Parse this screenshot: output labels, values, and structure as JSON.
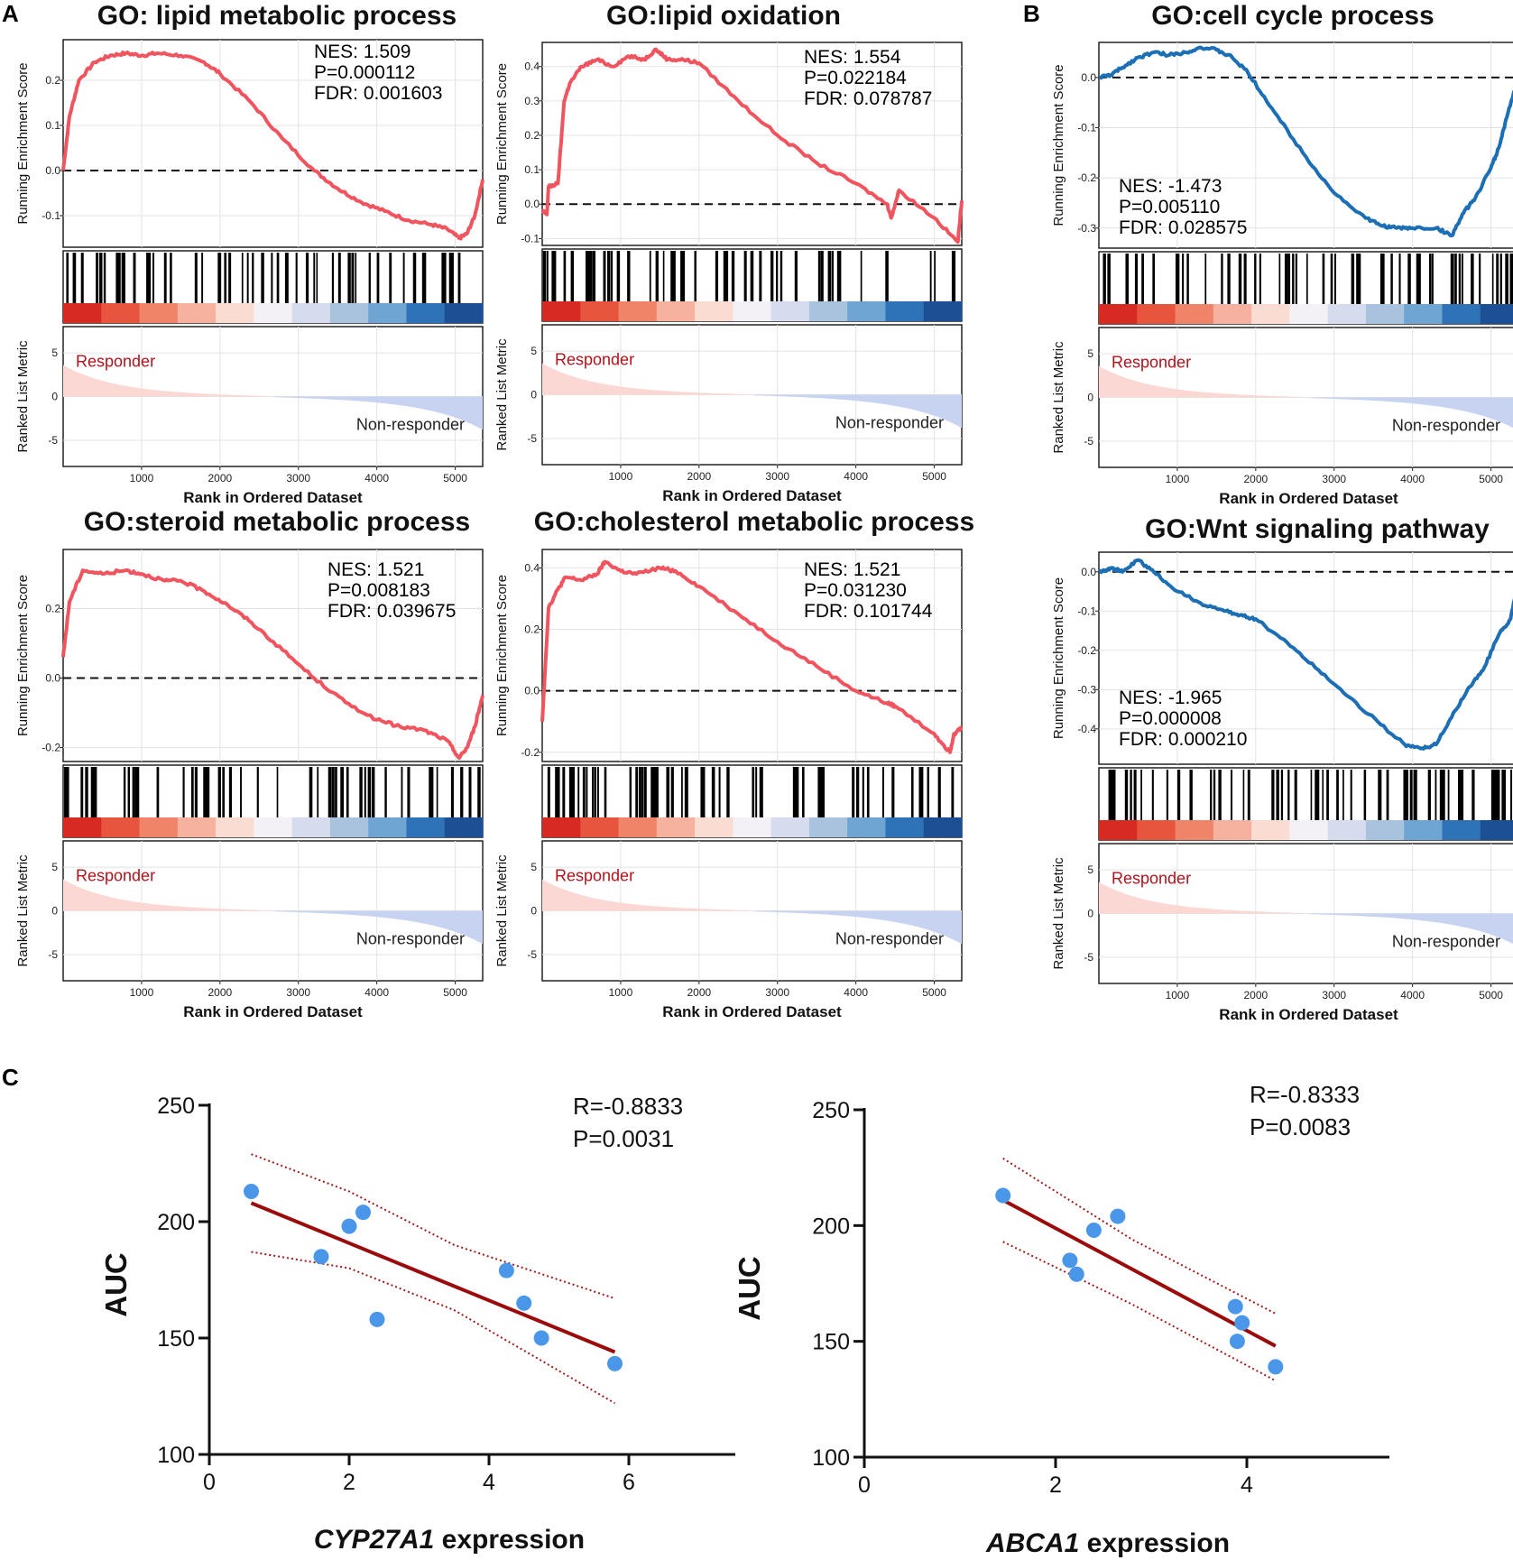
{
  "panel_labels": [
    "A",
    "B",
    "C"
  ],
  "gsea_common": {
    "running_ylabel": "Running Enrichment Score",
    "metric_ylabel": "Ranked List Metric",
    "xlabel": "Rank in Ordered Dataset",
    "rank_ticks": [
      "1000",
      "2000",
      "3000",
      "4000",
      "5000"
    ],
    "metric_ticks": [
      "5",
      "0",
      "-5"
    ],
    "responder_label": "Responder",
    "nonresponder_label": "Non-responder",
    "colors": {
      "positive_curve": "#f0555f",
      "negative_curve": "#1c6fb5",
      "responder_text": "#b3121c"
    }
  },
  "chart_data": [
    {
      "type": "line",
      "panel": "A",
      "title": "GO: lipid metabolic process",
      "nes": "NES: 1.509",
      "p": "P=0.000112",
      "fdr": "FDR: 0.001603",
      "direction": "positive",
      "y_ticks": [
        "0.2",
        "0.1",
        "0.0",
        "-0.1"
      ],
      "y_tick_values": [
        0.2,
        0.1,
        0.0,
        -0.1
      ],
      "ylim": [
        -0.17,
        0.29
      ],
      "x": [
        0,
        80,
        200,
        400,
        600,
        800,
        1000,
        1200,
        1500,
        1800,
        2000,
        2400,
        2800,
        3200,
        3500,
        3800,
        4100,
        4400,
        4700,
        4900,
        5050,
        5150,
        5250,
        5350
      ],
      "y": [
        0.0,
        0.12,
        0.2,
        0.24,
        0.255,
        0.26,
        0.255,
        0.26,
        0.255,
        0.24,
        0.215,
        0.15,
        0.07,
        0.0,
        -0.04,
        -0.07,
        -0.09,
        -0.11,
        -0.12,
        -0.13,
        -0.15,
        -0.14,
        -0.1,
        -0.02
      ]
    },
    {
      "type": "line",
      "panel": "A",
      "title": "GO:lipid oxidation",
      "nes": "NES: 1.554",
      "p": "P=0.022184",
      "fdr": "FDR: 0.078787",
      "direction": "positive",
      "y_ticks": [
        "0.4",
        "0.3",
        "0.2",
        "0.1",
        "0.0",
        "-0.1"
      ],
      "y_tick_values": [
        0.4,
        0.3,
        0.2,
        0.1,
        0.0,
        -0.1
      ],
      "ylim": [
        -0.12,
        0.47
      ],
      "x": [
        0,
        60,
        80,
        200,
        280,
        350,
        500,
        700,
        900,
        1100,
        1300,
        1450,
        1600,
        1800,
        2000,
        2500,
        3000,
        3500,
        4000,
        4400,
        4450,
        4550,
        5000,
        5300,
        5350
      ],
      "y": [
        -0.02,
        -0.03,
        0.05,
        0.06,
        0.3,
        0.35,
        0.4,
        0.42,
        0.4,
        0.43,
        0.42,
        0.45,
        0.42,
        0.42,
        0.41,
        0.3,
        0.2,
        0.12,
        0.06,
        0.0,
        -0.04,
        0.04,
        -0.04,
        -0.11,
        0.01
      ]
    },
    {
      "type": "line",
      "panel": "A",
      "title": "GO:steroid metabolic process",
      "nes": "NES: 1.521",
      "p": "P=0.008183",
      "fdr": "FDR: 0.039675",
      "direction": "positive",
      "y_ticks": [
        "0.2",
        "0.0",
        "-0.2"
      ],
      "y_tick_values": [
        0.2,
        0.0,
        -0.2
      ],
      "ylim": [
        -0.24,
        0.37
      ],
      "x": [
        0,
        80,
        250,
        500,
        800,
        1000,
        1300,
        1500,
        1800,
        2100,
        2400,
        2800,
        3200,
        3600,
        4000,
        4300,
        4600,
        4900,
        5050,
        5150,
        5250,
        5350
      ],
      "y": [
        0.06,
        0.22,
        0.31,
        0.3,
        0.31,
        0.3,
        0.28,
        0.28,
        0.25,
        0.21,
        0.16,
        0.08,
        0.0,
        -0.07,
        -0.12,
        -0.14,
        -0.15,
        -0.18,
        -0.23,
        -0.2,
        -0.14,
        -0.05
      ]
    },
    {
      "type": "line",
      "panel": "A",
      "title": "GO:cholesterol metabolic process",
      "nes": "NES: 1.521",
      "p": "P=0.031230",
      "fdr": "FDR: 0.101744",
      "direction": "positive",
      "y_ticks": [
        "0.4",
        "0.2",
        "0.0",
        "-0.2"
      ],
      "y_tick_values": [
        0.4,
        0.2,
        0.0,
        -0.2
      ],
      "ylim": [
        -0.23,
        0.46
      ],
      "x": [
        0,
        80,
        200,
        300,
        500,
        700,
        800,
        1000,
        1200,
        1500,
        1700,
        2000,
        2500,
        3000,
        3500,
        4000,
        4400,
        4500,
        5000,
        5200,
        5250,
        5350
      ],
      "y": [
        -0.1,
        0.27,
        0.33,
        0.37,
        0.36,
        0.38,
        0.42,
        0.39,
        0.38,
        0.4,
        0.39,
        0.34,
        0.25,
        0.16,
        0.08,
        0.0,
        -0.04,
        -0.05,
        -0.14,
        -0.2,
        -0.14,
        -0.12
      ]
    },
    {
      "type": "line",
      "panel": "B",
      "title": "GO:cell cycle process",
      "nes": "NES: -1.473",
      "p": "P=0.005110",
      "fdr": "FDR: 0.028575",
      "direction": "negative",
      "y_ticks": [
        "0.0",
        "-0.1",
        "-0.2",
        "-0.3"
      ],
      "y_tick_values": [
        0.0,
        -0.1,
        -0.2,
        -0.3
      ],
      "ylim": [
        -0.34,
        0.07
      ],
      "x": [
        0,
        150,
        300,
        500,
        700,
        900,
        1100,
        1300,
        1500,
        1700,
        1900,
        2200,
        2600,
        3000,
        3400,
        3600,
        3800,
        4000,
        4300,
        4500,
        4650,
        4800,
        5000,
        5100,
        5200,
        5350
      ],
      "y": [
        0.0,
        0.005,
        0.02,
        0.04,
        0.05,
        0.045,
        0.05,
        0.06,
        0.055,
        0.04,
        0.01,
        -0.06,
        -0.15,
        -0.23,
        -0.28,
        -0.295,
        -0.3,
        -0.3,
        -0.3,
        -0.315,
        -0.27,
        -0.24,
        -0.18,
        -0.14,
        -0.08,
        -0.0
      ]
    },
    {
      "type": "line",
      "panel": "B",
      "title": "GO:Wnt signaling pathway",
      "nes": "NES: -1.965",
      "p": "P=0.000008",
      "fdr": "FDR: 0.000210",
      "direction": "negative",
      "y_ticks": [
        "0.0",
        "-0.1",
        "-0.2",
        "-0.3",
        "-0.4"
      ],
      "y_tick_values": [
        0.0,
        -0.1,
        -0.2,
        -0.3,
        -0.4
      ],
      "ylim": [
        -0.49,
        0.05
      ],
      "x": [
        0,
        150,
        300,
        500,
        700,
        1000,
        1300,
        1600,
        1800,
        2000,
        2400,
        2800,
        3200,
        3600,
        3900,
        4100,
        4300,
        4500,
        4700,
        4900,
        5100,
        5250,
        5350
      ],
      "y": [
        0.0,
        0.01,
        0.0,
        0.03,
        0.0,
        -0.05,
        -0.08,
        -0.1,
        -0.11,
        -0.12,
        -0.18,
        -0.25,
        -0.32,
        -0.39,
        -0.44,
        -0.45,
        -0.44,
        -0.37,
        -0.3,
        -0.25,
        -0.16,
        -0.12,
        -0.02
      ]
    },
    {
      "type": "scatter",
      "panel": "C",
      "xlabel_italic": "CYP27A1",
      "xlabel_rest": " expression",
      "ylabel": "AUC",
      "r": "R=-0.8833",
      "p": "P=0.0031",
      "x_ticks": [
        "0",
        "2",
        "4",
        "6"
      ],
      "y_ticks": [
        "100",
        "150",
        "200",
        "250"
      ],
      "xlim": [
        0,
        7.5
      ],
      "ylim": [
        100,
        250
      ],
      "points": [
        [
          0.6,
          213
        ],
        [
          1.6,
          185
        ],
        [
          2.0,
          198
        ],
        [
          2.2,
          204
        ],
        [
          2.4,
          158
        ],
        [
          4.25,
          179
        ],
        [
          4.5,
          165
        ],
        [
          4.75,
          150
        ],
        [
          5.8,
          139
        ]
      ],
      "fit": [
        [
          0.6,
          208
        ],
        [
          5.8,
          144
        ]
      ],
      "ci_upper": [
        [
          0.6,
          229
        ],
        [
          2.0,
          213
        ],
        [
          3.5,
          190
        ],
        [
          5.8,
          167
        ]
      ],
      "ci_lower": [
        [
          0.6,
          187
        ],
        [
          2.0,
          180
        ],
        [
          3.5,
          162
        ],
        [
          5.8,
          122
        ]
      ],
      "colors": {
        "points": "#4a97ea",
        "fit": "#9b0b0b",
        "ci": "#a01b1b"
      }
    },
    {
      "type": "scatter",
      "panel": "C",
      "xlabel_italic": "ABCA1",
      "xlabel_rest": " expression",
      "ylabel": "AUC",
      "r": "R=-0.8333",
      "p": "P=0.0083",
      "x_ticks": [
        "0",
        "2",
        "4"
      ],
      "y_ticks": [
        "100",
        "150",
        "200",
        "250"
      ],
      "xlim": [
        0,
        5.5
      ],
      "ylim": [
        100,
        250
      ],
      "points": [
        [
          1.45,
          213
        ],
        [
          2.15,
          185
        ],
        [
          2.22,
          179
        ],
        [
          2.4,
          198
        ],
        [
          2.65,
          204
        ],
        [
          3.88,
          165
        ],
        [
          3.9,
          150
        ],
        [
          3.95,
          158
        ],
        [
          4.3,
          139
        ]
      ],
      "fit": [
        [
          1.45,
          211
        ],
        [
          4.3,
          148
        ]
      ],
      "ci_upper": [
        [
          1.45,
          229
        ],
        [
          2.8,
          194
        ],
        [
          4.3,
          162
        ]
      ],
      "ci_lower": [
        [
          1.45,
          193
        ],
        [
          2.8,
          166
        ],
        [
          4.3,
          133
        ]
      ],
      "colors": {
        "points": "#4a97ea",
        "fit": "#9b0b0b",
        "ci": "#a01b1b"
      }
    }
  ]
}
